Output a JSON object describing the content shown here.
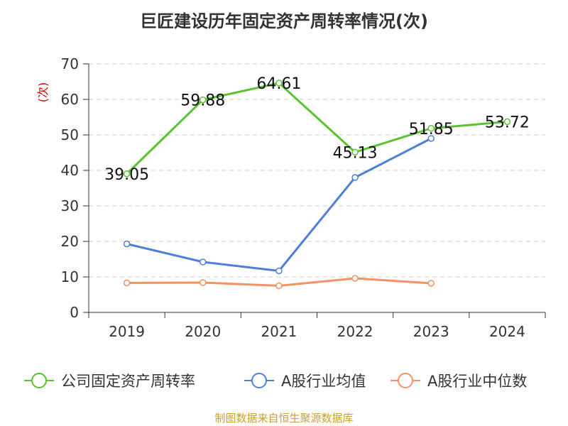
{
  "title": "巨匠建设历年固定资产周转率情况(次)",
  "source_note": "制图数据来自恒生聚源数据库",
  "colors": {
    "company": "#5cc232",
    "industry_avg": "#4f7fd7",
    "industry_median": "#f49263",
    "ylabel": "#cc0000",
    "axis": "#333333",
    "grid": "#cccccc"
  },
  "chart_data": {
    "type": "line",
    "categories": [
      "2019",
      "2020",
      "2021",
      "2022",
      "2023",
      "2024"
    ],
    "ylabel": "(次)",
    "ylim": [
      0,
      70
    ],
    "yticks": [
      0,
      10,
      20,
      30,
      40,
      50,
      60,
      70
    ],
    "grid": true,
    "legend_position": "bottom",
    "series": [
      {
        "name": "公司固定资产周转率",
        "color": "#5cc232",
        "values": [
          39.05,
          59.88,
          64.61,
          45.13,
          51.85,
          53.72
        ],
        "labels": [
          "39.05",
          "59.88",
          "64.61",
          "45.13",
          "51.85",
          "53.72"
        ]
      },
      {
        "name": "A股行业均值",
        "color": "#4f7fd7",
        "values": [
          19.3,
          14.2,
          11.7,
          38.0,
          49.0,
          null
        ]
      },
      {
        "name": "A股行业中位数",
        "color": "#f49263",
        "values": [
          8.3,
          8.4,
          7.5,
          9.6,
          8.2,
          null
        ]
      }
    ]
  }
}
